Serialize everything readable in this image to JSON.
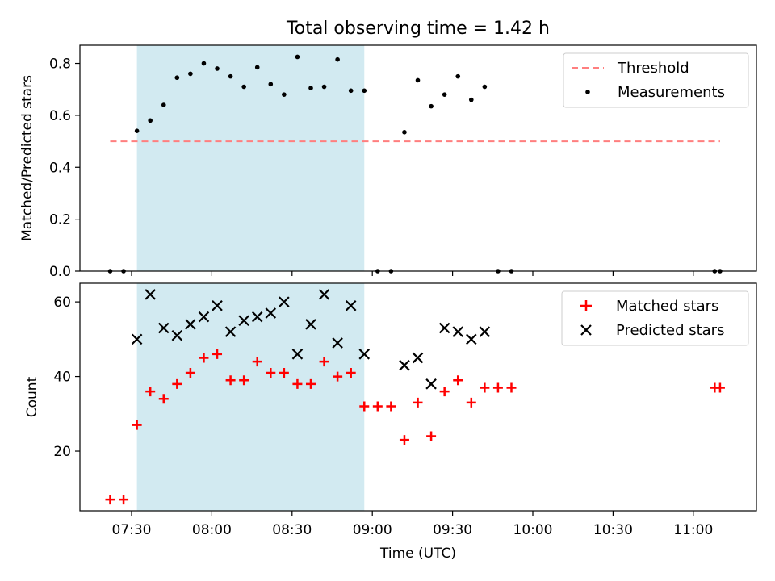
{
  "chart_data": {
    "title": "Total observing time = 1.42 h",
    "xlabel": "Time (UTC)",
    "x_ticks": [
      "07:30",
      "08:00",
      "08:30",
      "09:00",
      "09:30",
      "10:00",
      "10:30",
      "11:00"
    ],
    "shaded_interval": [
      "07:32",
      "08:57"
    ],
    "time_points": [
      "07:22",
      "07:27",
      "07:32",
      "07:37",
      "07:42",
      "07:47",
      "07:52",
      "07:57",
      "08:02",
      "08:07",
      "08:12",
      "08:17",
      "08:22",
      "08:27",
      "08:32",
      "08:37",
      "08:42",
      "08:47",
      "08:52",
      "08:57",
      "09:02",
      "09:07",
      "09:12",
      "09:17",
      "09:22",
      "09:27",
      "09:32",
      "09:37",
      "09:42",
      "09:47",
      "09:52",
      "11:08",
      "11:10"
    ],
    "panels": [
      {
        "type": "scatter",
        "ylabel": "Matched/Predicted stars",
        "ylim": [
          0,
          0.87
        ],
        "y_ticks": [
          0.0,
          0.2,
          0.4,
          0.6,
          0.8
        ],
        "legend_placement": "top-right",
        "threshold": {
          "name": "Threshold",
          "value": 0.5,
          "x_range": [
            "07:22",
            "11:10"
          ],
          "color": "#ff7f7f"
        },
        "series": [
          {
            "name": "Measurements",
            "color": "#000000",
            "marker": "dot",
            "values": [
              0.0,
              0.0,
              0.54,
              0.58,
              0.64,
              0.745,
              0.76,
              0.8,
              0.78,
              0.75,
              0.71,
              0.785,
              0.72,
              0.68,
              0.825,
              0.705,
              0.71,
              0.815,
              0.695,
              0.695,
              0.0,
              0.0,
              0.535,
              0.735,
              0.635,
              0.68,
              0.75,
              0.66,
              0.71,
              0.0,
              0.0,
              0.0,
              0.0
            ]
          }
        ]
      },
      {
        "type": "scatter",
        "ylabel": "Count",
        "ylim": [
          4,
          65
        ],
        "y_ticks": [
          20,
          40,
          60
        ],
        "legend_placement": "top-right",
        "series": [
          {
            "name": "Matched stars",
            "color": "#ff0000",
            "marker": "plus",
            "values": [
              7,
              7,
              27,
              36,
              34,
              38,
              41,
              45,
              46,
              39,
              39,
              44,
              41,
              41,
              38,
              38,
              44,
              40,
              41,
              32,
              32,
              32,
              23,
              33,
              24,
              36,
              39,
              33,
              37,
              37,
              37,
              37,
              37
            ]
          },
          {
            "name": "Predicted stars",
            "color": "#000000",
            "marker": "x",
            "values": [
              null,
              null,
              50,
              62,
              53,
              51,
              54,
              56,
              59,
              52,
              55,
              56,
              57,
              60,
              46,
              54,
              62,
              49,
              59,
              46,
              null,
              null,
              43,
              45,
              38,
              53,
              52,
              50,
              52,
              null,
              null,
              null,
              null
            ]
          }
        ]
      }
    ]
  }
}
